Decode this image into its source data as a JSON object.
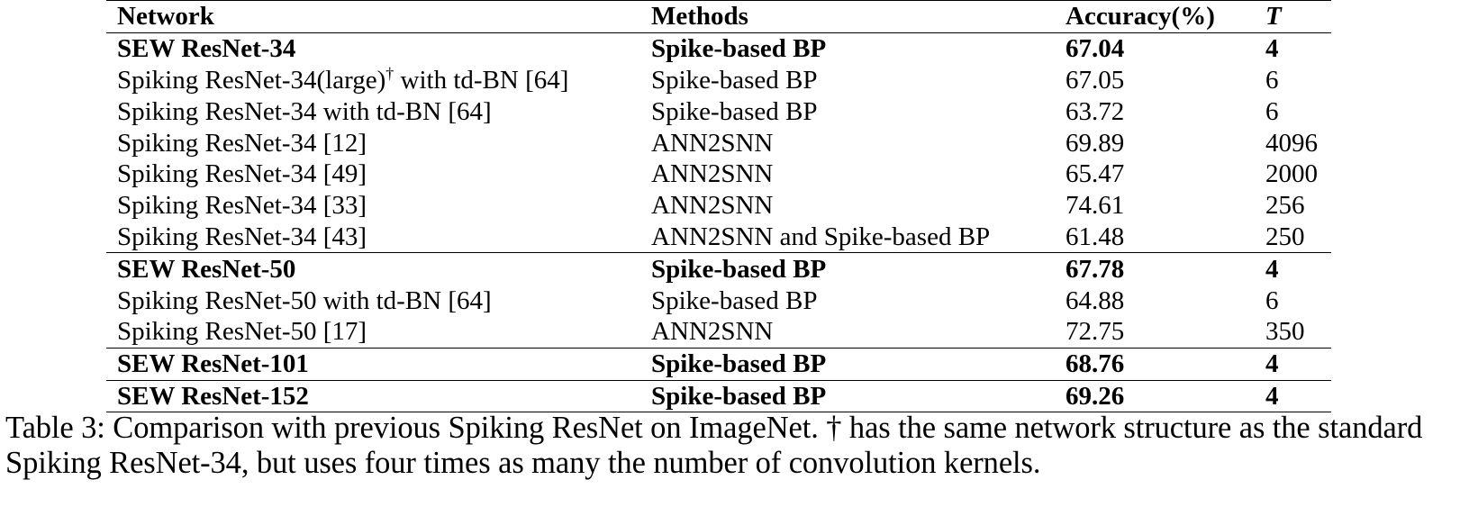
{
  "table": {
    "headers": {
      "network": "Network",
      "methods": "Methods",
      "accuracy": "Accuracy(%)",
      "t": "T"
    },
    "rows": [
      {
        "network": "SEW ResNet-34",
        "network_sup": "",
        "network_suffix": "",
        "methods": "Spike-based BP",
        "accuracy": "67.04",
        "t": "4",
        "bold": true
      },
      {
        "network": "Spiking ResNet-34(large)",
        "network_sup": "†",
        "network_suffix": " with td-BN [64]",
        "methods": "Spike-based BP",
        "accuracy": "67.05",
        "t": "6",
        "bold": false
      },
      {
        "network": "Spiking ResNet-34 with td-BN [64]",
        "network_sup": "",
        "network_suffix": "",
        "methods": "Spike-based BP",
        "accuracy": "63.72",
        "t": "6",
        "bold": false
      },
      {
        "network": "Spiking ResNet-34 [12]",
        "network_sup": "",
        "network_suffix": "",
        "methods": "ANN2SNN",
        "accuracy": "69.89",
        "t": "4096",
        "bold": false
      },
      {
        "network": "Spiking ResNet-34 [49]",
        "network_sup": "",
        "network_suffix": "",
        "methods": "ANN2SNN",
        "accuracy": "65.47",
        "t": "2000",
        "bold": false
      },
      {
        "network": "Spiking ResNet-34 [33]",
        "network_sup": "",
        "network_suffix": "",
        "methods": "ANN2SNN",
        "accuracy": "74.61",
        "t": "256",
        "bold": false
      },
      {
        "network": "Spiking ResNet-34 [43]",
        "network_sup": "",
        "network_suffix": "",
        "methods": "ANN2SNN and Spike-based BP",
        "accuracy": "61.48",
        "t": "250",
        "bold": false
      },
      {
        "network": "SEW ResNet-50",
        "network_sup": "",
        "network_suffix": "",
        "methods": "Spike-based BP",
        "accuracy": "67.78",
        "t": "4",
        "bold": true
      },
      {
        "network": "Spiking ResNet-50 with td-BN [64]",
        "network_sup": "",
        "network_suffix": "",
        "methods": "Spike-based BP",
        "accuracy": "64.88",
        "t": "6",
        "bold": false
      },
      {
        "network": "Spiking ResNet-50 [17]",
        "network_sup": "",
        "network_suffix": "",
        "methods": "ANN2SNN",
        "accuracy": "72.75",
        "t": "350",
        "bold": false
      },
      {
        "network": "SEW ResNet-101",
        "network_sup": "",
        "network_suffix": "",
        "methods": "Spike-based BP",
        "accuracy": "68.76",
        "t": "4",
        "bold": true
      },
      {
        "network": "SEW ResNet-152",
        "network_sup": "",
        "network_suffix": "",
        "methods": "Spike-based BP",
        "accuracy": "69.26",
        "t": "4",
        "bold": true
      }
    ]
  },
  "caption": {
    "text": "Table 3: Comparison with previous Spiking ResNet on ImageNet. † has the same network structure as the standard Spiking ResNet-34, but uses four times as many the number of convolution kernels."
  }
}
